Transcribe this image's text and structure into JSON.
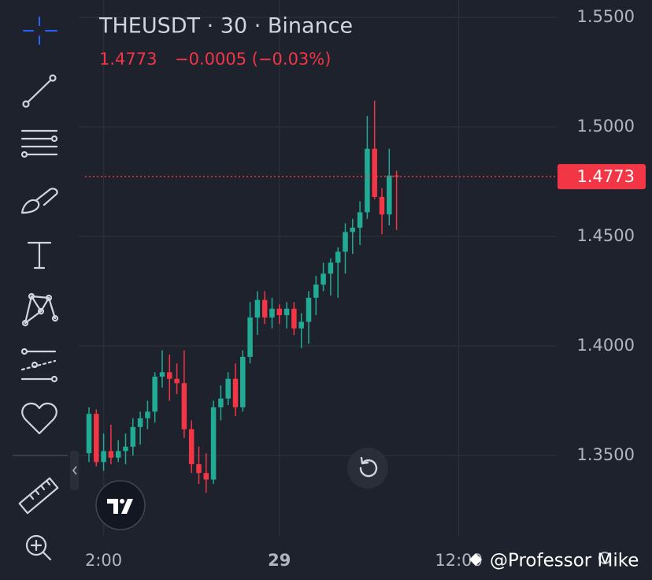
{
  "chart_data": {
    "type": "candlestick",
    "title": "THEUSDT · 30 · Binance",
    "header_price": "1.4773",
    "header_change": "−0.0005 (−0.03%)",
    "last_price": 1.4773,
    "watermark": "@Professor Mike",
    "up_color": "#22ab94",
    "down_color": "#f23645",
    "grid": true,
    "ylim": [
      1.3133,
      1.5579
    ],
    "yticks": [
      {
        "value": 1.55,
        "label": "1.5500"
      },
      {
        "value": 1.5,
        "label": "1.5000"
      },
      {
        "value": 1.45,
        "label": "1.4500"
      },
      {
        "value": 1.4,
        "label": "1.4000"
      },
      {
        "value": 1.35,
        "label": "1.3500"
      }
    ],
    "xticks": [
      {
        "value": 2,
        "label": "2:00"
      },
      {
        "value": 26,
        "label": "29"
      },
      {
        "value": 50.5,
        "label": "12:00"
      }
    ],
    "open": [
      1.351,
      1.369,
      1.347,
      1.352,
      1.349,
      1.352,
      1.354,
      1.363,
      1.367,
      1.37,
      1.386,
      1.388,
      1.385,
      1.383,
      1.362,
      1.346,
      1.342,
      1.339,
      1.372,
      1.376,
      1.385,
      1.372,
      1.395,
      1.413,
      1.421,
      1.413,
      1.417,
      1.414,
      1.417,
      1.408,
      1.411,
      1.422,
      1.428,
      1.433,
      1.438,
      1.443,
      1.452,
      1.454,
      1.461,
      1.49,
      1.468,
      1.46,
      1.4778
    ],
    "high": [
      1.372,
      1.371,
      1.36,
      1.364,
      1.357,
      1.36,
      1.367,
      1.37,
      1.375,
      1.388,
      1.398,
      1.396,
      1.392,
      1.398,
      1.366,
      1.354,
      1.351,
      1.375,
      1.382,
      1.388,
      1.392,
      1.398,
      1.42,
      1.425,
      1.425,
      1.422,
      1.419,
      1.42,
      1.42,
      1.415,
      1.425,
      1.432,
      1.438,
      1.44,
      1.445,
      1.456,
      1.458,
      1.466,
      1.505,
      1.512,
      1.472,
      1.49,
      1.48
    ],
    "low": [
      1.347,
      1.345,
      1.343,
      1.346,
      1.347,
      1.346,
      1.35,
      1.355,
      1.362,
      1.365,
      1.381,
      1.375,
      1.378,
      1.358,
      1.342,
      1.337,
      1.333,
      1.337,
      1.366,
      1.373,
      1.368,
      1.37,
      1.392,
      1.405,
      1.41,
      1.408,
      1.41,
      1.408,
      1.405,
      1.399,
      1.401,
      1.414,
      1.425,
      1.423,
      1.422,
      1.433,
      1.442,
      1.446,
      1.458,
      1.467,
      1.451,
      1.455,
      1.453
    ],
    "close": [
      1.369,
      1.347,
      1.352,
      1.349,
      1.352,
      1.354,
      1.363,
      1.367,
      1.37,
      1.386,
      1.388,
      1.385,
      1.383,
      1.362,
      1.346,
      1.342,
      1.339,
      1.372,
      1.376,
      1.385,
      1.372,
      1.395,
      1.413,
      1.421,
      1.413,
      1.417,
      1.414,
      1.417,
      1.408,
      1.411,
      1.422,
      1.428,
      1.433,
      1.438,
      1.443,
      1.452,
      1.454,
      1.461,
      1.49,
      1.468,
      1.46,
      1.4778,
      1.4773
    ]
  }
}
